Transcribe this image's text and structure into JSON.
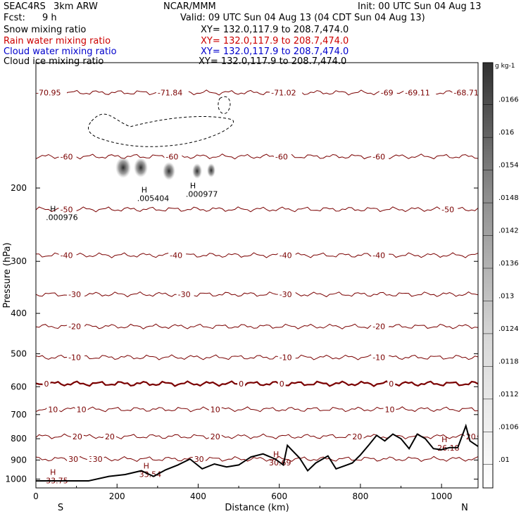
{
  "header": {
    "project": "SEAC4RS",
    "model": "3km ARW",
    "org": "NCAR/MMM",
    "init": "Init: 00 UTC Sun 04 Aug 13",
    "fcst_label": "Fcst:",
    "fcst_value": "9 h",
    "valid": "Valid: 09 UTC Sun 04 Aug 13 (04 CDT Sun 04 Aug 13)",
    "fields": [
      {
        "name": "Snow mixing ratio",
        "xy": "XY= 132.0,117.9 to 208.7,474.0",
        "color": "#000000"
      },
      {
        "name": "Rain water mixing ratio",
        "xy": "XY= 132.0,117.9 to 208.7,474.0",
        "color": "#cc0000"
      },
      {
        "name": "Cloud water mixing ratio",
        "xy": "XY= 132.0,117.9 to 208.7,474.0",
        "color": "#0000cc"
      },
      {
        "name": "Cloud ice mixing ratio",
        "xy": "XY= 132.0,117.9 to 208.7,474.0",
        "color": "#000000"
      }
    ]
  },
  "chart_data": {
    "type": "line",
    "xlabel": "Distance (km)",
    "ylabel": "Pressure (hPa)",
    "xlim": [
      0,
      1090
    ],
    "ylim": [
      1050,
      100
    ],
    "y_scale": "log",
    "x_ticks": [
      0,
      200,
      400,
      600,
      800,
      1000
    ],
    "y_ticks": [
      200,
      300,
      400,
      500,
      600,
      700,
      800,
      900,
      1000
    ],
    "y_tick_labels": [
      "200",
      "300",
      "400",
      "500",
      "600",
      "700",
      "800",
      "900",
      "1000"
    ],
    "end_labels": {
      "left": "S",
      "right": "N"
    },
    "temperature_contours": [
      {
        "value": -70,
        "pressure": 118,
        "labels": [
          {
            "x": 0,
            "text": "-70.95"
          },
          {
            "x": 300,
            "text": "-71.84"
          },
          {
            "x": 580,
            "text": "-71.02"
          },
          {
            "x": 850,
            "text": "-69"
          },
          {
            "x": 910,
            "text": "-69.11"
          },
          {
            "x": 1030,
            "text": "-68.71"
          }
        ]
      },
      {
        "value": -60,
        "pressure": 168,
        "labels": [
          {
            "x": 60,
            "text": "-60"
          },
          {
            "x": 320,
            "text": "-60"
          },
          {
            "x": 590,
            "text": "-60"
          },
          {
            "x": 830,
            "text": "-60"
          }
        ]
      },
      {
        "value": -50,
        "pressure": 225,
        "labels": [
          {
            "x": 60,
            "text": "-50"
          },
          {
            "x": 1000,
            "text": "-50"
          }
        ]
      },
      {
        "value": -40,
        "pressure": 290,
        "labels": [
          {
            "x": 60,
            "text": "-40"
          },
          {
            "x": 330,
            "text": "-40"
          },
          {
            "x": 600,
            "text": "-40"
          },
          {
            "x": 830,
            "text": "-40"
          }
        ]
      },
      {
        "value": -30,
        "pressure": 360,
        "labels": [
          {
            "x": 80,
            "text": "-30"
          },
          {
            "x": 350,
            "text": "-30"
          },
          {
            "x": 600,
            "text": "-30"
          }
        ]
      },
      {
        "value": -20,
        "pressure": 430,
        "labels": [
          {
            "x": 80,
            "text": "-20"
          },
          {
            "x": 830,
            "text": "-20"
          }
        ]
      },
      {
        "value": -10,
        "pressure": 510,
        "labels": [
          {
            "x": 80,
            "text": "-10"
          },
          {
            "x": 600,
            "text": "-10"
          },
          {
            "x": 830,
            "text": "-10"
          }
        ]
      },
      {
        "value": 0,
        "pressure": 590,
        "labels": [
          {
            "x": 20,
            "text": "0"
          },
          {
            "x": 500,
            "text": "0"
          },
          {
            "x": 600,
            "text": "0"
          },
          {
            "x": 870,
            "text": "0"
          }
        ]
      },
      {
        "value": 10,
        "pressure": 680,
        "labels": [
          {
            "x": 30,
            "text": "10"
          },
          {
            "x": 100,
            "text": "10"
          },
          {
            "x": 430,
            "text": "10"
          },
          {
            "x": 860,
            "text": "10"
          }
        ]
      },
      {
        "value": 20,
        "pressure": 790,
        "labels": [
          {
            "x": 90,
            "text": "20"
          },
          {
            "x": 170,
            "text": "20"
          },
          {
            "x": 430,
            "text": "20"
          },
          {
            "x": 780,
            "text": "20"
          },
          {
            "x": 1060,
            "text": "20"
          }
        ]
      },
      {
        "value": 30,
        "pressure": 895,
        "labels": [
          {
            "x": 80,
            "text": "30"
          },
          {
            "x": 130,
            "text": "30"
          },
          {
            "x": 390,
            "text": "30"
          },
          {
            "x": 140,
            "text": "30"
          }
        ]
      }
    ],
    "extrema": [
      {
        "x": 35,
        "pressure": 1000,
        "text": "H",
        "value": "33.75"
      },
      {
        "x": 265,
        "pressure": 965,
        "text": "H",
        "value": "33.54"
      },
      {
        "x": 585,
        "pressure": 905,
        "text": "H",
        "value": "30.69"
      },
      {
        "x": 1000,
        "pressure": 835,
        "text": "H",
        "value": "26.18"
      },
      {
        "x": 35,
        "pressure": 233,
        "text": "H",
        "value": ".000976"
      },
      {
        "x": 260,
        "pressure": 210,
        "text": "H",
        "value": ".005404"
      },
      {
        "x": 380,
        "pressure": 205,
        "text": "H",
        "value": ".000977"
      }
    ],
    "terrain_surface": {
      "x": [
        0,
        130,
        180,
        220,
        260,
        290,
        320,
        350,
        380,
        410,
        440,
        470,
        500,
        530,
        560,
        590,
        610,
        620,
        630,
        650,
        670,
        690,
        720,
        740,
        760,
        780,
        800,
        820,
        840,
        860,
        880,
        900,
        920,
        940,
        960,
        980,
        1000,
        1020,
        1040,
        1060,
        1070,
        1090
      ],
      "pressure": [
        1010,
        1010,
        985,
        975,
        955,
        985,
        950,
        925,
        895,
        945,
        920,
        935,
        925,
        885,
        870,
        895,
        925,
        830,
        850,
        890,
        955,
        915,
        880,
        945,
        930,
        915,
        875,
        830,
        785,
        810,
        780,
        800,
        845,
        780,
        800,
        845,
        850,
        840,
        840,
        745,
        810,
        835
      ]
    },
    "colorbar": {
      "unit": "g kg-1",
      "ticks": [
        ".01",
        ".0106",
        ".0112",
        ".0118",
        ".0124",
        ".013",
        ".0136",
        ".0142",
        ".0148",
        ".0154",
        ".016",
        ".0166"
      ]
    }
  },
  "colors": {
    "contour": "#7a0000",
    "zero_contour": "#7a0000",
    "terrain": "#000000",
    "label": "#7a0000"
  }
}
